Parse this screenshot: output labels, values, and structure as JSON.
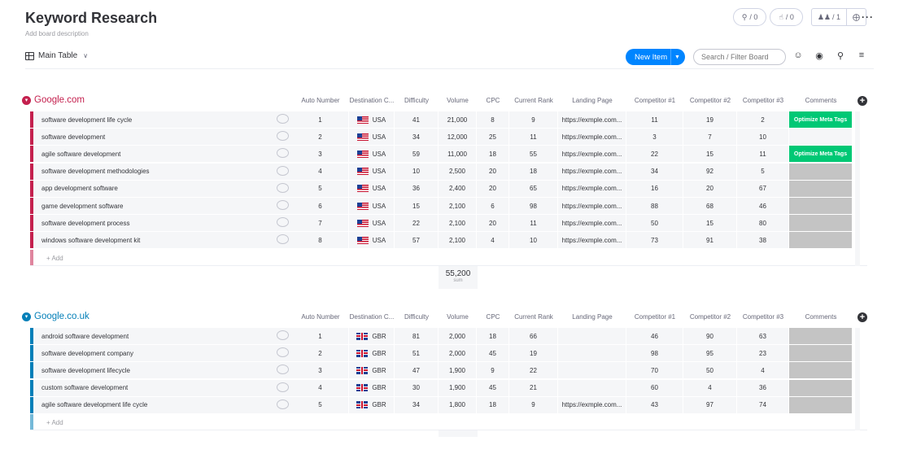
{
  "board": {
    "title": "Keyword Research",
    "description": "Add board description",
    "view_label": "Main Table",
    "activity_1": "/ 0",
    "activity_2": "/ 0",
    "members": "/ 1",
    "new_item_label": "New Item",
    "search_placeholder": "Search / Filter Board"
  },
  "columns": [
    "Auto Number",
    "Destination C...",
    "Difficulty",
    "Volume",
    "CPC",
    "Current Rank",
    "Landing Page",
    "Competitor #1",
    "Competitor #2",
    "Competitor #3",
    "Comments"
  ],
  "groups": [
    {
      "name": "Google.com",
      "color": "#c4204e",
      "add_label": "+ Add",
      "rows": [
        {
          "keyword": "software development life cycle",
          "num": "1",
          "country": "USA",
          "difficulty": "41",
          "volume": "21,000",
          "cpc": "8",
          "rank": "9",
          "landing": "https://exmple.com...",
          "c1": "11",
          "c2": "19",
          "c3": "2",
          "comment": "Optimize Meta Tags"
        },
        {
          "keyword": "software development",
          "num": "2",
          "country": "USA",
          "difficulty": "34",
          "volume": "12,000",
          "cpc": "25",
          "rank": "11",
          "landing": "https://exmple.com...",
          "c1": "3",
          "c2": "7",
          "c3": "10",
          "comment": ""
        },
        {
          "keyword": "agile software development",
          "num": "3",
          "country": "USA",
          "difficulty": "59",
          "volume": "11,000",
          "cpc": "18",
          "rank": "55",
          "landing": "https://exmple.com...",
          "c1": "22",
          "c2": "15",
          "c3": "11",
          "comment": "Optimize Meta Tags"
        },
        {
          "keyword": "software development methodologies",
          "num": "4",
          "country": "USA",
          "difficulty": "10",
          "volume": "2,500",
          "cpc": "20",
          "rank": "18",
          "landing": "https://exmple.com...",
          "c1": "34",
          "c2": "92",
          "c3": "5",
          "comment": ""
        },
        {
          "keyword": "app development software",
          "num": "5",
          "country": "USA",
          "difficulty": "36",
          "volume": "2,400",
          "cpc": "20",
          "rank": "65",
          "landing": "https://exmple.com...",
          "c1": "16",
          "c2": "20",
          "c3": "67",
          "comment": ""
        },
        {
          "keyword": "game development software",
          "num": "6",
          "country": "USA",
          "difficulty": "15",
          "volume": "2,100",
          "cpc": "6",
          "rank": "98",
          "landing": "https://exmple.com...",
          "c1": "88",
          "c2": "68",
          "c3": "46",
          "comment": ""
        },
        {
          "keyword": "software development process",
          "num": "7",
          "country": "USA",
          "difficulty": "22",
          "volume": "2,100",
          "cpc": "20",
          "rank": "11",
          "landing": "https://exmple.com...",
          "c1": "50",
          "c2": "15",
          "c3": "80",
          "comment": ""
        },
        {
          "keyword": "windows software development kit",
          "num": "8",
          "country": "USA",
          "difficulty": "57",
          "volume": "2,100",
          "cpc": "4",
          "rank": "10",
          "landing": "https://exmple.com...",
          "c1": "73",
          "c2": "91",
          "c3": "38",
          "comment": ""
        }
      ],
      "sum_value": "55,200",
      "sum_label": "sum"
    },
    {
      "name": "Google.co.uk",
      "color": "#037fb8",
      "add_label": "+ Add",
      "rows": [
        {
          "keyword": "android software development",
          "num": "1",
          "country": "GBR",
          "difficulty": "81",
          "volume": "2,000",
          "cpc": "18",
          "rank": "66",
          "landing": "",
          "c1": "46",
          "c2": "90",
          "c3": "63",
          "comment": ""
        },
        {
          "keyword": "software development company",
          "num": "2",
          "country": "GBR",
          "difficulty": "51",
          "volume": "2,000",
          "cpc": "45",
          "rank": "19",
          "landing": "",
          "c1": "98",
          "c2": "95",
          "c3": "23",
          "comment": ""
        },
        {
          "keyword": "software development lifecycle",
          "num": "3",
          "country": "GBR",
          "difficulty": "47",
          "volume": "1,900",
          "cpc": "9",
          "rank": "22",
          "landing": "",
          "c1": "70",
          "c2": "50",
          "c3": "4",
          "comment": ""
        },
        {
          "keyword": "custom software development",
          "num": "4",
          "country": "GBR",
          "difficulty": "30",
          "volume": "1,900",
          "cpc": "45",
          "rank": "21",
          "landing": "",
          "c1": "60",
          "c2": "4",
          "c3": "36",
          "comment": ""
        },
        {
          "keyword": "agile software development life cycle",
          "num": "5",
          "country": "GBR",
          "difficulty": "34",
          "volume": "1,800",
          "cpc": "18",
          "rank": "9",
          "landing": "https://exmple.com...",
          "c1": "43",
          "c2": "97",
          "c3": "74",
          "comment": ""
        }
      ]
    }
  ]
}
